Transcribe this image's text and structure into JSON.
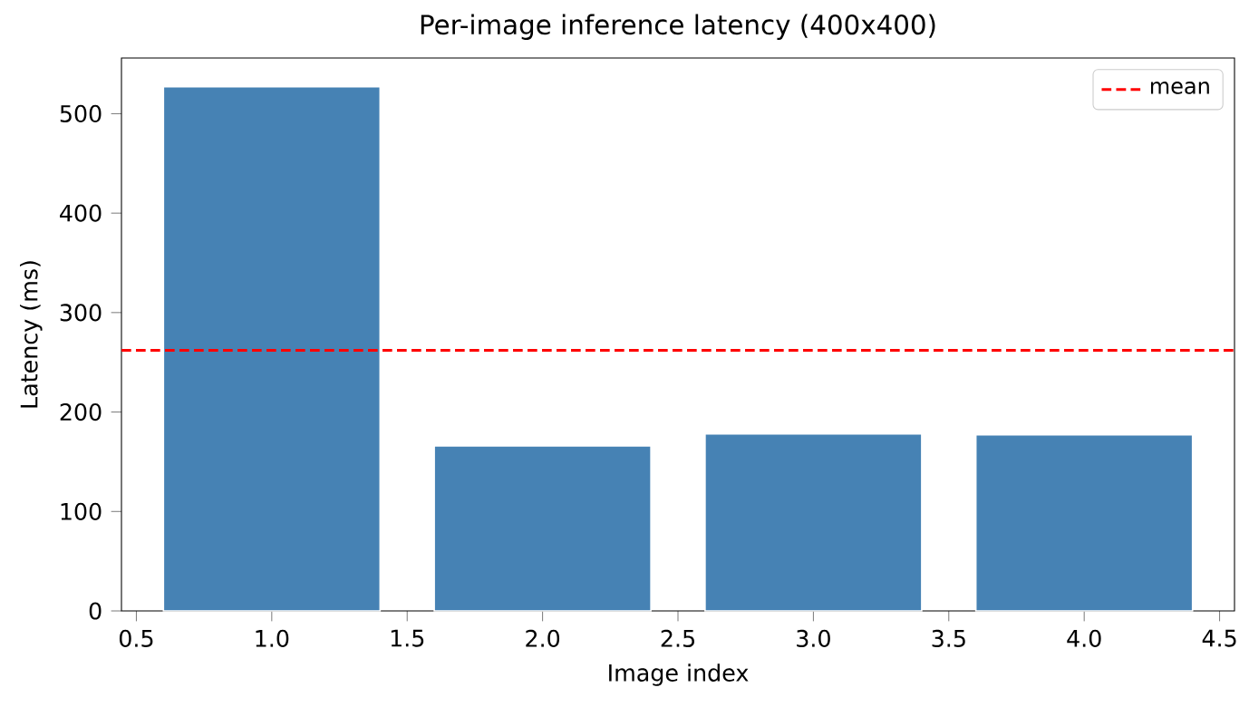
{
  "chart_data": {
    "type": "bar",
    "title": "Per-image inference latency (400x400)",
    "xlabel": "Image index",
    "ylabel": "Latency (ms)",
    "x": [
      1,
      2,
      3,
      4
    ],
    "values": [
      527,
      166,
      178,
      177
    ],
    "color": "#4682b4",
    "xlim": [
      0.445,
      4.555
    ],
    "xticks": [
      {
        "value": 0.5,
        "label": "0.5"
      },
      {
        "value": 1.0,
        "label": "1.0"
      },
      {
        "value": 1.5,
        "label": "1.5"
      },
      {
        "value": 2.0,
        "label": "2.0"
      },
      {
        "value": 2.5,
        "label": "2.5"
      },
      {
        "value": 3.0,
        "label": "3.0"
      },
      {
        "value": 3.5,
        "label": "3.5"
      },
      {
        "value": 4.0,
        "label": "4.0"
      },
      {
        "value": 4.5,
        "label": "4.5"
      }
    ],
    "ylim": [
      0,
      556
    ],
    "yticks": [
      0,
      100,
      200,
      300,
      400,
      500
    ],
    "ref_lines": [
      {
        "axis": "y",
        "value": 262,
        "label": "mean",
        "color": "#ff0000",
        "line_style": "dashed"
      }
    ],
    "legend": "top right"
  }
}
